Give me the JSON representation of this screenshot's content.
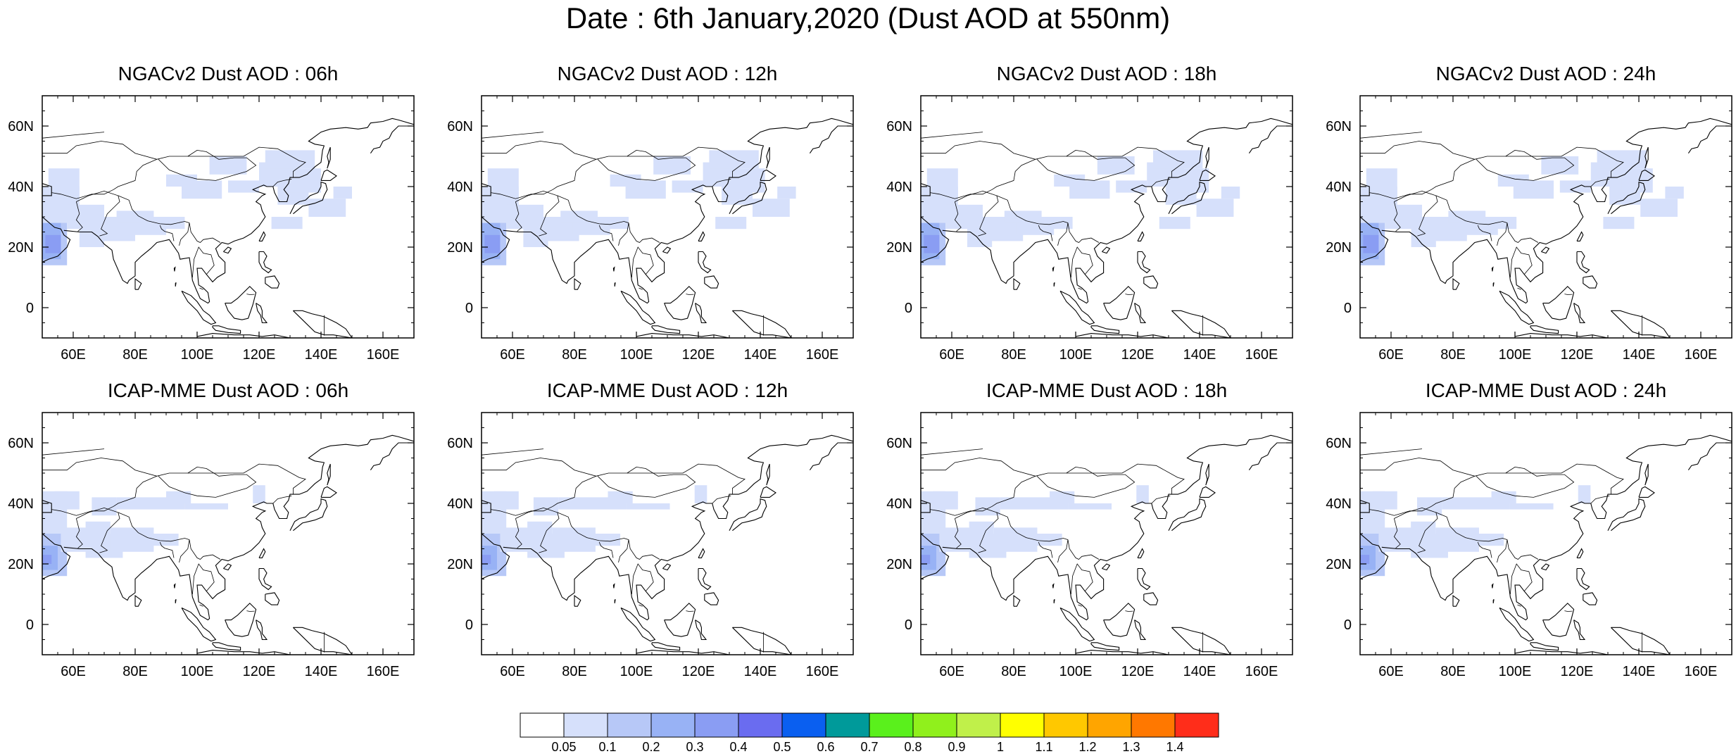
{
  "title": "Date : 6th January,2020 (Dust AOD at 550nm)",
  "panels": [
    {
      "title": "NGACv2 Dust AOD : 06h"
    },
    {
      "title": "NGACv2 Dust AOD : 12h"
    },
    {
      "title": "NGACv2 Dust AOD : 18h"
    },
    {
      "title": "NGACv2 Dust AOD : 24h"
    },
    {
      "title": "ICAP-MME Dust AOD : 06h"
    },
    {
      "title": "ICAP-MME Dust AOD : 12h"
    },
    {
      "title": "ICAP-MME Dust AOD : 18h"
    },
    {
      "title": "ICAP-MME Dust AOD : 24h"
    }
  ],
  "map_extent": {
    "lon": [
      50,
      170
    ],
    "lat": [
      -10,
      70
    ]
  },
  "lon_ticks": [
    "60E",
    "80E",
    "100E",
    "120E",
    "140E",
    "160E"
  ],
  "lat_ticks": [
    "0",
    "20N",
    "40N",
    "60N"
  ],
  "colorbar": {
    "labels": [
      "0.05",
      "0.1",
      "0.2",
      "0.3",
      "0.4",
      "0.5",
      "0.6",
      "0.7",
      "0.8",
      "0.9",
      "1",
      "1.1",
      "1.2",
      "1.3",
      "1.4"
    ],
    "colors": [
      "#ffffff",
      "#d6e0fb",
      "#b7c8f7",
      "#98b2f5",
      "#8a9df3",
      "#6a6cf0",
      "#0a5ff0",
      "#009a9a",
      "#5af01c",
      "#90f01c",
      "#c0f04a",
      "#ffff00",
      "#ffc800",
      "#ffa500",
      "#ff7800",
      "#ff2d1a"
    ]
  }
}
